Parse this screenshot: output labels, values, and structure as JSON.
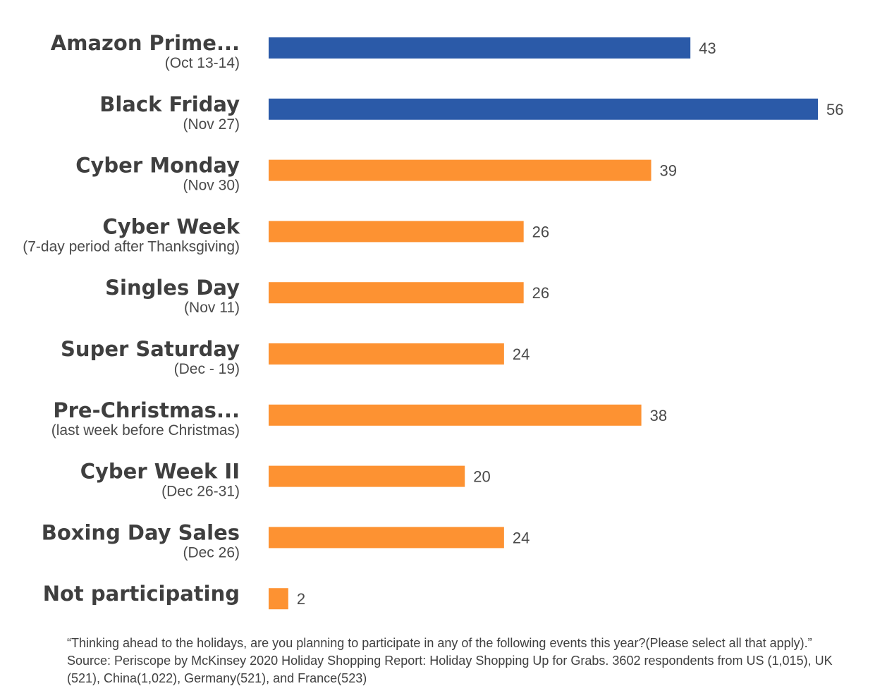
{
  "chart_data": {
    "type": "bar",
    "orientation": "horizontal",
    "categories": [
      {
        "label": "Amazon Prime...",
        "sublabel": "(Oct 13-14)"
      },
      {
        "label": "Black Friday",
        "sublabel": "(Nov 27)"
      },
      {
        "label": "Cyber Monday",
        "sublabel": "(Nov 30)"
      },
      {
        "label": "Cyber Week",
        "sublabel": "(7-day period after Thanksgiving)"
      },
      {
        "label": "Singles Day",
        "sublabel": "(Nov 11)"
      },
      {
        "label": "Super Saturday",
        "sublabel": "(Dec - 19)"
      },
      {
        "label": "Pre-Christmas...",
        "sublabel": "(last week before Christmas)"
      },
      {
        "label": "Cyber Week II",
        "sublabel": "(Dec 26-31)"
      },
      {
        "label": "Boxing Day Sales",
        "sublabel": "(Dec 26)"
      },
      {
        "label": "Not participating",
        "sublabel": ""
      }
    ],
    "values": [
      43,
      56,
      39,
      26,
      26,
      24,
      38,
      20,
      24,
      2
    ],
    "bar_colors": [
      "#2b5aa8",
      "#2b5aa8",
      "#fd9232",
      "#fd9232",
      "#fd9232",
      "#fd9232",
      "#fd9232",
      "#fd9232",
      "#fd9232",
      "#fd9232"
    ],
    "xlim": [
      0,
      56
    ],
    "grid": false,
    "legend": "none"
  },
  "footnote": {
    "question": "“Thinking ahead to the holidays, are you planning to participate in any of the following events this year?(Please select all that apply).”",
    "source": "Source: Periscope by McKinsey 2020 Holiday Shopping Report: Holiday Shopping Up for Grabs. 3602 respondents from US (1,015), UK (521), China(1,022), Germany(521), and France(523)"
  }
}
